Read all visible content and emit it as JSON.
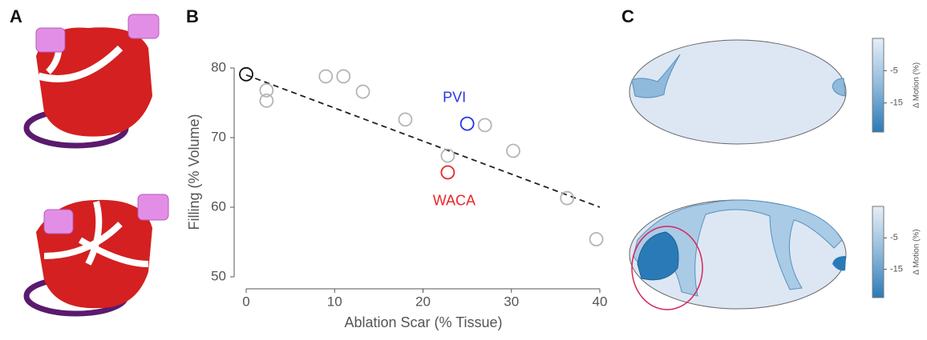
{
  "panel_labels": [
    "A",
    "B",
    "C"
  ],
  "chart_data": {
    "type": "scatter",
    "x_label": "Ablation Scar (% Tissue)",
    "y_label": "Filling (% Volume)",
    "xlim": [
      0,
      40
    ],
    "ylim": [
      50,
      80
    ],
    "xticks": [
      0,
      10,
      20,
      30,
      40
    ],
    "yticks": [
      50,
      60,
      70,
      80
    ],
    "series": [
      {
        "color": "#b5b5b5",
        "x": [
          2.3,
          2.3,
          9,
          11,
          13.2,
          18,
          22.8,
          27,
          30.2,
          36.3,
          39.6
        ],
        "values": [
          76.8,
          75.3,
          78.8,
          78.8,
          76.6,
          72.6,
          67.4,
          71.8,
          68.1,
          61.3,
          55.4
        ]
      },
      {
        "color": "#111111",
        "x": [
          0
        ],
        "values": [
          79.1
        ]
      },
      {
        "name": "PVI",
        "color": "#2436e8",
        "x": [
          25
        ],
        "values": [
          72
        ]
      },
      {
        "name": "WACA",
        "color": "#e8262a",
        "x": [
          22.8
        ],
        "values": [
          65
        ]
      }
    ],
    "trend_line": {
      "x": [
        0,
        40
      ],
      "values": [
        79,
        60
      ],
      "color": "#222222"
    }
  },
  "colorbar": {
    "label": "Δ Motion (%)",
    "ticks": [
      -5,
      -15
    ],
    "lim": [
      -24,
      5
    ]
  }
}
